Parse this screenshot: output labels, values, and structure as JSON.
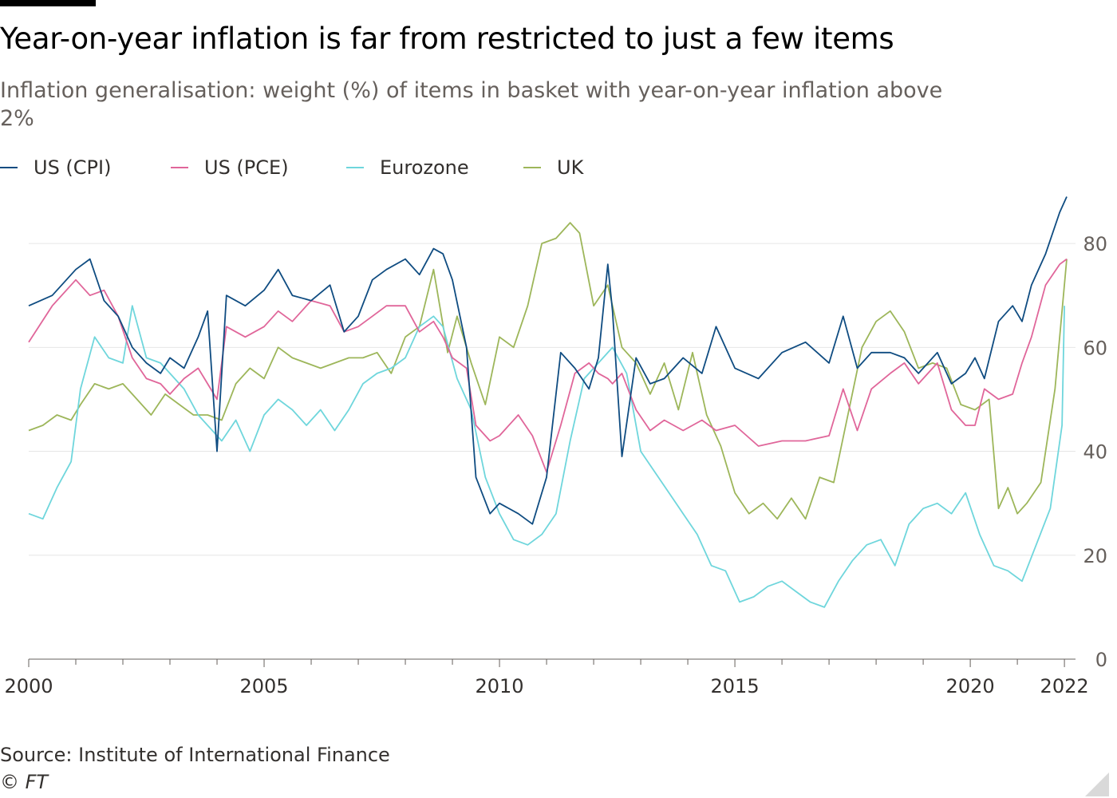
{
  "title": "Year-on-year inflation is far from restricted to just a few items",
  "subtitle": "Inflation generalisation: weight (%) of items in basket with year-on-year inflation above 2%",
  "source": "Source: Institute of International Finance",
  "copyright": "© FT",
  "colors": {
    "US (CPI)": "#0f4c81",
    "US (PCE)": "#e0669a",
    "Eurozone": "#6fd6dc",
    "UK": "#9db65a",
    "grid": "#e6e6e6",
    "axis": "#66605c"
  },
  "chart_data": {
    "type": "line",
    "title": "Year-on-year inflation is far from restricted to just a few items",
    "subtitle": "Inflation generalisation: weight (%) of items in basket with year-on-year inflation above 2%",
    "xlabel": "",
    "ylabel": "",
    "xlim": [
      2000.0,
      2022.1
    ],
    "ylim": [
      0,
      90
    ],
    "y_ticks": [
      0,
      20,
      40,
      60,
      80
    ],
    "x_tick_labels": [
      "2000",
      "2005",
      "2010",
      "2015",
      "2020",
      "2022"
    ],
    "x_tick_values": [
      2000,
      2005,
      2010,
      2015,
      2020,
      2022
    ],
    "grid": "horizontal",
    "y_axis_position": "right",
    "legend_position": "top-left",
    "series": [
      {
        "name": "US (CPI)",
        "x": [
          2000.0,
          2000.5,
          2001.0,
          2001.3,
          2001.6,
          2001.9,
          2002.2,
          2002.5,
          2002.8,
          2003.0,
          2003.3,
          2003.6,
          2003.8,
          2004.0,
          2004.2,
          2004.6,
          2005.0,
          2005.3,
          2005.6,
          2006.0,
          2006.4,
          2006.7,
          2007.0,
          2007.3,
          2007.6,
          2008.0,
          2008.3,
          2008.6,
          2008.8,
          2009.0,
          2009.3,
          2009.5,
          2009.8,
          2010.0,
          2010.4,
          2010.7,
          2011.0,
          2011.3,
          2011.6,
          2011.9,
          2012.1,
          2012.3,
          2012.4,
          2012.6,
          2012.9,
          2013.2,
          2013.5,
          2013.9,
          2014.3,
          2014.6,
          2015.0,
          2015.5,
          2016.0,
          2016.5,
          2017.0,
          2017.3,
          2017.6,
          2017.9,
          2018.3,
          2018.6,
          2018.9,
          2019.3,
          2019.6,
          2019.9,
          2020.1,
          2020.3,
          2020.6,
          2020.9,
          2021.1,
          2021.3,
          2021.6,
          2021.9,
          2022.05
        ],
        "y": [
          68,
          70,
          75,
          77,
          69,
          66,
          60,
          57,
          55,
          58,
          56,
          62,
          67,
          40,
          70,
          68,
          71,
          75,
          70,
          69,
          72,
          63,
          66,
          73,
          75,
          77,
          74,
          79,
          78,
          73,
          60,
          35,
          28,
          30,
          28,
          26,
          35,
          59,
          56,
          52,
          58,
          76,
          67,
          39,
          58,
          53,
          54,
          58,
          55,
          64,
          56,
          54,
          59,
          61,
          57,
          66,
          56,
          59,
          59,
          58,
          55,
          59,
          53,
          55,
          58,
          54,
          65,
          68,
          65,
          72,
          78,
          86,
          89
        ]
      },
      {
        "name": "US (PCE)",
        "x": [
          2000.0,
          2000.5,
          2001.0,
          2001.3,
          2001.6,
          2001.9,
          2002.2,
          2002.5,
          2002.8,
          2003.0,
          2003.3,
          2003.6,
          2003.8,
          2004.0,
          2004.2,
          2004.6,
          2005.0,
          2005.3,
          2005.6,
          2006.0,
          2006.4,
          2006.7,
          2007.0,
          2007.3,
          2007.6,
          2008.0,
          2008.3,
          2008.6,
          2008.8,
          2009.0,
          2009.3,
          2009.5,
          2009.8,
          2010.0,
          2010.4,
          2010.7,
          2011.0,
          2011.3,
          2011.6,
          2011.9,
          2012.1,
          2012.3,
          2012.4,
          2012.6,
          2012.9,
          2013.2,
          2013.5,
          2013.9,
          2014.3,
          2014.6,
          2015.0,
          2015.5,
          2016.0,
          2016.5,
          2017.0,
          2017.3,
          2017.6,
          2017.9,
          2018.3,
          2018.6,
          2018.9,
          2019.3,
          2019.6,
          2019.9,
          2020.1,
          2020.3,
          2020.6,
          2020.9,
          2021.1,
          2021.3,
          2021.6,
          2021.9,
          2022.05
        ],
        "y": [
          61,
          68,
          73,
          70,
          71,
          66,
          58,
          54,
          53,
          51,
          54,
          56,
          53,
          50,
          64,
          62,
          64,
          67,
          65,
          69,
          68,
          63,
          64,
          66,
          68,
          68,
          63,
          65,
          62,
          58,
          56,
          45,
          42,
          43,
          47,
          43,
          36,
          45,
          55,
          57,
          55,
          54,
          53,
          55,
          48,
          44,
          46,
          44,
          46,
          44,
          45,
          41,
          42,
          42,
          43,
          52,
          44,
          52,
          55,
          57,
          53,
          57,
          48,
          45,
          45,
          52,
          50,
          51,
          57,
          62,
          72,
          76,
          77
        ]
      },
      {
        "name": "Eurozone",
        "x": [
          2000.0,
          2000.3,
          2000.6,
          2000.9,
          2001.1,
          2001.4,
          2001.7,
          2002.0,
          2002.2,
          2002.5,
          2002.8,
          2003.0,
          2003.3,
          2003.6,
          2003.9,
          2004.1,
          2004.4,
          2004.7,
          2005.0,
          2005.3,
          2005.6,
          2005.9,
          2006.2,
          2006.5,
          2006.8,
          2007.1,
          2007.4,
          2007.7,
          2008.0,
          2008.3,
          2008.6,
          2008.8,
          2009.1,
          2009.4,
          2009.7,
          2010.0,
          2010.3,
          2010.6,
          2010.9,
          2011.2,
          2011.5,
          2011.8,
          2012.1,
          2012.4,
          2012.7,
          2013.0,
          2013.3,
          2013.6,
          2013.9,
          2014.2,
          2014.5,
          2014.8,
          2015.1,
          2015.4,
          2015.7,
          2016.0,
          2016.3,
          2016.6,
          2016.9,
          2017.2,
          2017.5,
          2017.8,
          2018.1,
          2018.4,
          2018.7,
          2019.0,
          2019.3,
          2019.6,
          2019.9,
          2020.2,
          2020.5,
          2020.8,
          2021.1,
          2021.4,
          2021.7,
          2021.95,
          2022.0
        ],
        "y": [
          28,
          27,
          33,
          38,
          52,
          62,
          58,
          57,
          68,
          58,
          57,
          55,
          52,
          47,
          44,
          42,
          46,
          40,
          47,
          50,
          48,
          45,
          48,
          44,
          48,
          53,
          55,
          56,
          58,
          64,
          66,
          64,
          54,
          48,
          35,
          28,
          23,
          22,
          24,
          28,
          42,
          54,
          57,
          60,
          55,
          40,
          36,
          32,
          28,
          24,
          18,
          17,
          11,
          12,
          14,
          15,
          13,
          11,
          10,
          15,
          19,
          22,
          23,
          18,
          26,
          29,
          30,
          28,
          32,
          24,
          18,
          17,
          15,
          22,
          29,
          45,
          68
        ]
      },
      {
        "name": "UK",
        "x": [
          2000.0,
          2000.3,
          2000.6,
          2000.9,
          2001.1,
          2001.4,
          2001.7,
          2002.0,
          2002.3,
          2002.6,
          2002.9,
          2003.2,
          2003.5,
          2003.8,
          2004.1,
          2004.4,
          2004.7,
          2005.0,
          2005.3,
          2005.6,
          2005.9,
          2006.2,
          2006.5,
          2006.8,
          2007.1,
          2007.4,
          2007.7,
          2008.0,
          2008.3,
          2008.6,
          2008.9,
          2009.1,
          2009.4,
          2009.7,
          2010.0,
          2010.3,
          2010.6,
          2010.9,
          2011.2,
          2011.5,
          2011.7,
          2012.0,
          2012.3,
          2012.6,
          2012.9,
          2013.2,
          2013.5,
          2013.8,
          2014.1,
          2014.4,
          2014.7,
          2015.0,
          2015.3,
          2015.6,
          2015.9,
          2016.2,
          2016.5,
          2016.8,
          2017.1,
          2017.4,
          2017.7,
          2018.0,
          2018.3,
          2018.6,
          2018.9,
          2019.2,
          2019.5,
          2019.8,
          2020.1,
          2020.4,
          2020.6,
          2020.8,
          2021.0,
          2021.2,
          2021.5,
          2021.8,
          2022.05
        ],
        "y": [
          44,
          45,
          47,
          46,
          49,
          53,
          52,
          53,
          50,
          47,
          51,
          49,
          47,
          47,
          46,
          53,
          56,
          54,
          60,
          58,
          57,
          56,
          57,
          58,
          58,
          59,
          55,
          62,
          64,
          75,
          59,
          66,
          57,
          49,
          62,
          60,
          68,
          80,
          81,
          84,
          82,
          68,
          72,
          60,
          57,
          51,
          57,
          48,
          59,
          47,
          41,
          32,
          28,
          30,
          27,
          31,
          27,
          35,
          34,
          47,
          60,
          65,
          67,
          63,
          56,
          57,
          56,
          49,
          48,
          50,
          29,
          33,
          28,
          30,
          34,
          52,
          77
        ]
      }
    ]
  }
}
